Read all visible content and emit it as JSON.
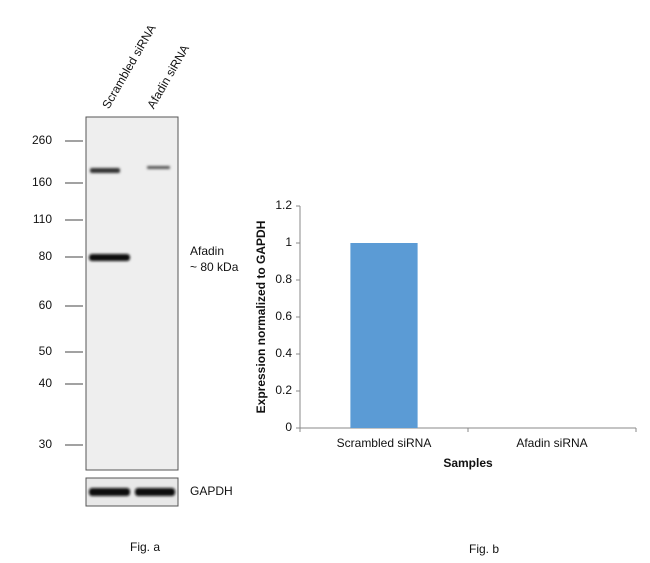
{
  "blot": {
    "lanes": [
      "Scrambled siRNA",
      "Afadin siRNA"
    ],
    "markers": [
      260,
      160,
      110,
      80,
      60,
      50,
      40,
      30
    ],
    "annotation": [
      "Afadin",
      "~ 80 kDa"
    ],
    "loading_control": "GAPDH",
    "caption": "Fig. a"
  },
  "chart_data": {
    "type": "bar",
    "categories": [
      "Scrambled siRNA",
      "Afadin siRNA"
    ],
    "values": [
      1,
      0
    ],
    "color": "#5b9bd5",
    "ylim": [
      0,
      1.2
    ],
    "yticks": [
      0,
      0.2,
      0.4,
      0.6,
      0.8,
      1,
      1.2
    ],
    "y_label": "Expression normalized to GAPDH",
    "x_label": "Samples",
    "caption": "Fig. b",
    "grid": false
  }
}
